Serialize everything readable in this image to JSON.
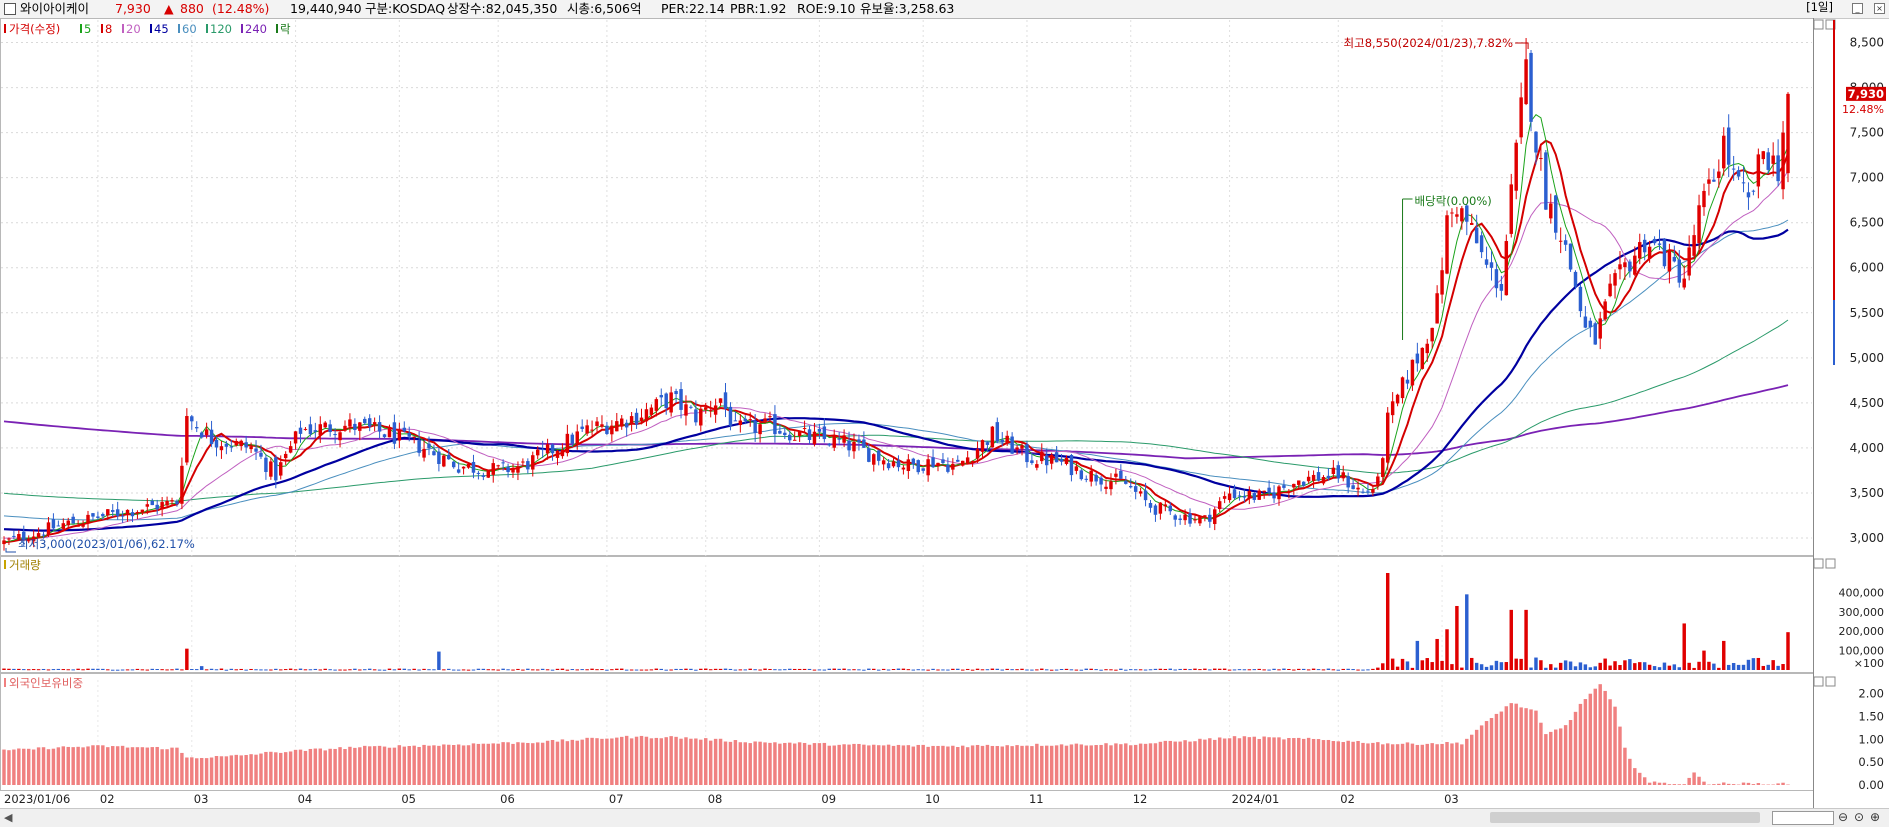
{
  "header": {
    "stock_name": "와이아이케이",
    "price": "7,930",
    "change_arrow": "▲",
    "change": "880",
    "change_pct": "(12.48%)",
    "volume": "19,440,940",
    "market": "구분:KOSDAQ",
    "shares": "상장수:82,045,350",
    "market_cap": "시총:6,506억",
    "per": "PER:22.14",
    "pbr": "PBR:1.92",
    "roe": "ROE:9.10",
    "reserve": "유보율:3,258.63",
    "period": "[1일]"
  },
  "legend": {
    "price_label": "가격(수정)",
    "ma": [
      {
        "label": "5",
        "color": "#1aa31a"
      },
      {
        "label": "8",
        "color": "#d40000"
      },
      {
        "label": "20",
        "color": "#c060c0"
      },
      {
        "label": "45",
        "color": "#0000a0"
      },
      {
        "label": "60",
        "color": "#4a8fbf"
      },
      {
        "label": "120",
        "color": "#2a9a6a"
      },
      {
        "label": "240",
        "color": "#7a22b4"
      }
    ],
    "extra": "락"
  },
  "annotations": {
    "high": "최고8,550(2024/01/23),7.82%",
    "low": "최저3,000(2023/01/06),62.17%",
    "dividend": "배당락(0.00%)"
  },
  "colors": {
    "up": "#e00000",
    "down": "#2b5fd0",
    "foreign_bar": "#f08080",
    "ma240": "#7a22b4"
  },
  "chart_data": [
    {
      "type": "candlestick",
      "title": "가격(수정)",
      "y_ticks": [
        3000,
        3500,
        4000,
        4500,
        5000,
        5500,
        6000,
        6500,
        7000,
        7500,
        8000,
        8500
      ],
      "y_tick_labels": [
        "3,000",
        "3,500",
        "4,000",
        "4,500",
        "5,000",
        "5,500",
        "6,000",
        "6,500",
        "7,000",
        "7,500",
        "8,000",
        "8,500"
      ],
      "ylim": [
        2800,
        8750
      ],
      "last_price_label": "7,930",
      "last_change_label": "12.48%",
      "x_labels": [
        "2023/01/06",
        "02",
        "03",
        "04",
        "05",
        "06",
        "07",
        "08",
        "09",
        "10",
        "11",
        "12",
        "2024/01",
        "02",
        "03"
      ],
      "close_path": [
        [
          0,
          2950
        ],
        [
          12,
          3150
        ],
        [
          25,
          3300
        ],
        [
          35,
          3400
        ],
        [
          37,
          4350
        ],
        [
          42,
          4100
        ],
        [
          50,
          4000
        ],
        [
          55,
          3700
        ],
        [
          60,
          4200
        ],
        [
          70,
          4250
        ],
        [
          78,
          4150
        ],
        [
          85,
          4000
        ],
        [
          92,
          3800
        ],
        [
          100,
          3750
        ],
        [
          105,
          3800
        ],
        [
          110,
          3950
        ],
        [
          118,
          4200
        ],
        [
          128,
          4350
        ],
        [
          135,
          4550
        ],
        [
          140,
          4350
        ],
        [
          145,
          4550
        ],
        [
          148,
          4200
        ],
        [
          155,
          4250
        ],
        [
          160,
          4150
        ],
        [
          165,
          4100
        ],
        [
          170,
          4050
        ],
        [
          177,
          3900
        ],
        [
          183,
          3800
        ],
        [
          188,
          3850
        ],
        [
          193,
          3800
        ],
        [
          200,
          4150
        ],
        [
          207,
          3900
        ],
        [
          213,
          3850
        ],
        [
          220,
          3700
        ],
        [
          227,
          3600
        ],
        [
          232,
          3350
        ],
        [
          238,
          3250
        ],
        [
          243,
          3200
        ],
        [
          248,
          3500
        ],
        [
          255,
          3450
        ],
        [
          262,
          3650
        ],
        [
          270,
          3700
        ],
        [
          275,
          3500
        ],
        [
          278,
          3600
        ],
        [
          280,
          4300
        ],
        [
          284,
          4800
        ],
        [
          287,
          5100
        ],
        [
          290,
          5600
        ],
        [
          292,
          6500
        ],
        [
          294,
          6700
        ],
        [
          297,
          6400
        ],
        [
          300,
          6000
        ],
        [
          303,
          5800
        ],
        [
          305,
          6800
        ],
        [
          308,
          8200
        ],
        [
          310,
          7400
        ],
        [
          312,
          6800
        ],
        [
          315,
          6400
        ],
        [
          318,
          5800
        ],
        [
          320,
          5300
        ],
        [
          322,
          5200
        ],
        [
          325,
          5700
        ],
        [
          328,
          6000
        ],
        [
          332,
          6300
        ],
        [
          335,
          6200
        ],
        [
          338,
          6000
        ],
        [
          340,
          5900
        ],
        [
          343,
          6600
        ],
        [
          346,
          7000
        ],
        [
          348,
          7400
        ],
        [
          350,
          7000
        ],
        [
          353,
          6700
        ],
        [
          356,
          7300
        ],
        [
          359,
          7100
        ],
        [
          361,
          7930
        ]
      ],
      "high": {
        "value": 8550,
        "date": "2024/01/23"
      },
      "low": {
        "value": 3000,
        "date": "2023/01/06"
      }
    },
    {
      "type": "bar",
      "title": "거래량",
      "y_tick_labels": [
        "400,000",
        "300,000",
        "200,000",
        "100,000"
      ],
      "unit": "×100",
      "ylim": [
        0,
        500000
      ],
      "spikes": [
        [
          37,
          110000
        ],
        [
          40,
          20000
        ],
        [
          88,
          95000
        ],
        [
          280,
          500000
        ],
        [
          286,
          150000
        ],
        [
          290,
          160000
        ],
        [
          292,
          210000
        ],
        [
          294,
          330000
        ],
        [
          296,
          390000
        ],
        [
          305,
          310000
        ],
        [
          308,
          310000
        ],
        [
          340,
          240000
        ],
        [
          344,
          100000
        ],
        [
          348,
          150000
        ],
        [
          361,
          195000
        ]
      ]
    },
    {
      "type": "bar",
      "title": "외국인보유비중",
      "y_tick_labels": [
        "2.00",
        "1.50",
        "1.00",
        "0.50",
        "0.00"
      ],
      "ylim": [
        0,
        2.3
      ],
      "ratio_path": [
        [
          0,
          0.75
        ],
        [
          10,
          0.82
        ],
        [
          20,
          0.85
        ],
        [
          35,
          0.8
        ],
        [
          37,
          0.6
        ],
        [
          45,
          0.62
        ],
        [
          55,
          0.72
        ],
        [
          70,
          0.82
        ],
        [
          90,
          0.88
        ],
        [
          110,
          0.95
        ],
        [
          125,
          1.05
        ],
        [
          135,
          1.05
        ],
        [
          150,
          0.95
        ],
        [
          170,
          0.88
        ],
        [
          190,
          0.85
        ],
        [
          210,
          0.88
        ],
        [
          230,
          0.9
        ],
        [
          250,
          1.05
        ],
        [
          265,
          1.0
        ],
        [
          282,
          0.9
        ],
        [
          295,
          0.92
        ],
        [
          298,
          1.2
        ],
        [
          302,
          1.55
        ],
        [
          305,
          1.8
        ],
        [
          310,
          1.6
        ],
        [
          312,
          1.1
        ],
        [
          316,
          1.3
        ],
        [
          320,
          1.9
        ],
        [
          323,
          2.2
        ],
        [
          326,
          1.7
        ],
        [
          328,
          0.8
        ],
        [
          330,
          0.4
        ],
        [
          333,
          0.05
        ],
        [
          340,
          0.03
        ],
        [
          342,
          0.25
        ],
        [
          345,
          0.03
        ],
        [
          361,
          0.02
        ]
      ]
    }
  ]
}
